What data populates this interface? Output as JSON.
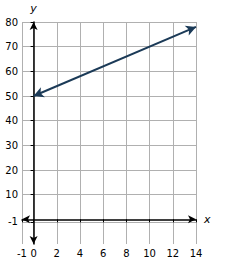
{
  "chart_data": {
    "type": "line",
    "x_label": "x",
    "y_label": "y",
    "x": [
      0,
      14
    ],
    "values": [
      50,
      78
    ],
    "color": "#1b3a57",
    "xlim": [
      -1,
      14
    ],
    "xticks": [
      -1,
      0,
      2,
      4,
      6,
      8,
      10,
      12,
      14
    ],
    "ylim": [
      -10,
      80
    ],
    "yticks": [
      -1,
      10,
      20,
      30,
      40,
      50,
      60,
      70,
      80
    ],
    "grid": true
  }
}
